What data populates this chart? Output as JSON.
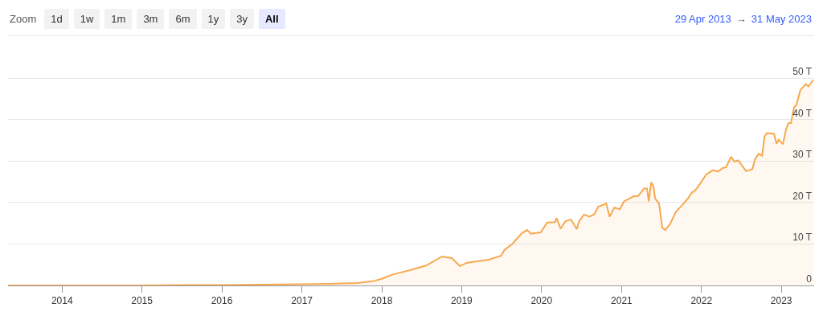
{
  "chart_data": {
    "type": "area",
    "annotations": [
      "Zoom",
      "1d",
      "1w",
      "1m",
      "3m",
      "6m",
      "1y",
      "3y",
      "All",
      "29 Apr 2013",
      "→",
      "31 May 2023"
    ],
    "x": [
      "2013-04-29",
      "2014-01-01",
      "2014-07-01",
      "2015-01-01",
      "2015-07-01",
      "2016-01-01",
      "2016-07-01",
      "2017-01-01",
      "2017-05-01",
      "2017-09-09",
      "2017-11-20",
      "2018-01-01",
      "2018-02-17",
      "2018-05-10",
      "2018-07-22",
      "2018-10-04",
      "2018-11-17",
      "2018-12-24",
      "2019-01-26",
      "2019-05-05",
      "2019-07-01",
      "2019-07-16",
      "2019-08-22",
      "2019-10-01",
      "2019-10-27",
      "2019-11-14",
      "2019-12-28",
      "2020-01-27",
      "2020-03-03",
      "2020-03-10",
      "2020-03-28",
      "2020-04-19",
      "2020-05-15",
      "2020-06-10",
      "2020-06-21",
      "2020-07-13",
      "2020-08-08",
      "2020-08-29",
      "2020-09-16",
      "2020-10-23",
      "2020-11-07",
      "2020-11-29",
      "2020-12-24",
      "2021-01-12",
      "2021-02-24",
      "2021-03-18",
      "2021-04-13",
      "2021-04-27",
      "2021-05-05",
      "2021-05-16",
      "2021-05-27",
      "2021-06-03",
      "2021-06-21",
      "2021-07-06",
      "2021-07-20",
      "2021-08-11",
      "2021-09-06",
      "2021-10-05",
      "2021-10-31",
      "2021-11-19",
      "2021-11-29",
      "2021-12-17",
      "2022-01-23",
      "2022-02-21",
      "2022-03-18",
      "2022-04-09",
      "2022-04-24",
      "2022-05-16",
      "2022-05-31",
      "2022-06-18",
      "2022-07-24",
      "2022-08-22",
      "2022-09-02",
      "2022-09-20",
      "2022-10-05",
      "2022-10-16",
      "2022-10-27",
      "2022-11-29",
      "2022-12-10",
      "2022-12-20",
      "2023-01-08",
      "2023-01-23",
      "2023-02-03",
      "2023-02-14",
      "2023-02-28",
      "2023-03-11",
      "2023-03-29",
      "2023-04-23",
      "2023-05-05",
      "2023-05-27"
    ],
    "series": [
      {
        "color": "#f7a84f",
        "values": [
          0,
          0,
          0,
          0,
          0.1,
          0.1,
          0.2,
          0.3,
          0.4,
          0.6,
          1.0,
          1.6,
          2.6,
          3.7,
          4.8,
          7.0,
          6.6,
          4.7,
          5.5,
          6.2,
          7.2,
          8.6,
          10.1,
          12.5,
          13.4,
          12.5,
          12.8,
          15.2,
          15.3,
          16.3,
          13.7,
          15.5,
          15.9,
          13.6,
          15.5,
          17.1,
          16.6,
          17.2,
          19.0,
          19.8,
          16.6,
          18.8,
          18.4,
          20.3,
          21.5,
          21.6,
          23.4,
          23.4,
          20.3,
          24.9,
          23.9,
          21.0,
          19.8,
          13.9,
          13.4,
          14.9,
          17.8,
          19.4,
          21.0,
          22.5,
          22.7,
          23.9,
          26.8,
          27.8,
          27.5,
          28.4,
          28.5,
          31.1,
          29.9,
          30.2,
          27.6,
          28.1,
          30.4,
          31.8,
          31.3,
          35.9,
          36.8,
          36.6,
          34.2,
          35.2,
          34.1,
          37.8,
          39.2,
          39.2,
          43.0,
          43.6,
          47.2,
          48.6,
          48.1,
          49.6
        ]
      }
    ],
    "xlim": [
      "2013-04-29",
      "2023-05-31"
    ],
    "xticks": [
      "2014",
      "2015",
      "2016",
      "2017",
      "2018",
      "2019",
      "2020",
      "2021",
      "2022",
      "2023"
    ],
    "ylim": [
      0,
      53
    ],
    "yticks": [
      0,
      {
        "value": 10,
        "label": "10 T"
      },
      {
        "value": 20,
        "label": "20 T"
      },
      {
        "value": 30,
        "label": "30 T"
      },
      {
        "value": 40,
        "label": "40 T"
      },
      {
        "value": 50,
        "label": "50 T"
      }
    ],
    "grid": "y",
    "marker": "none",
    "line_style": "solid"
  }
}
